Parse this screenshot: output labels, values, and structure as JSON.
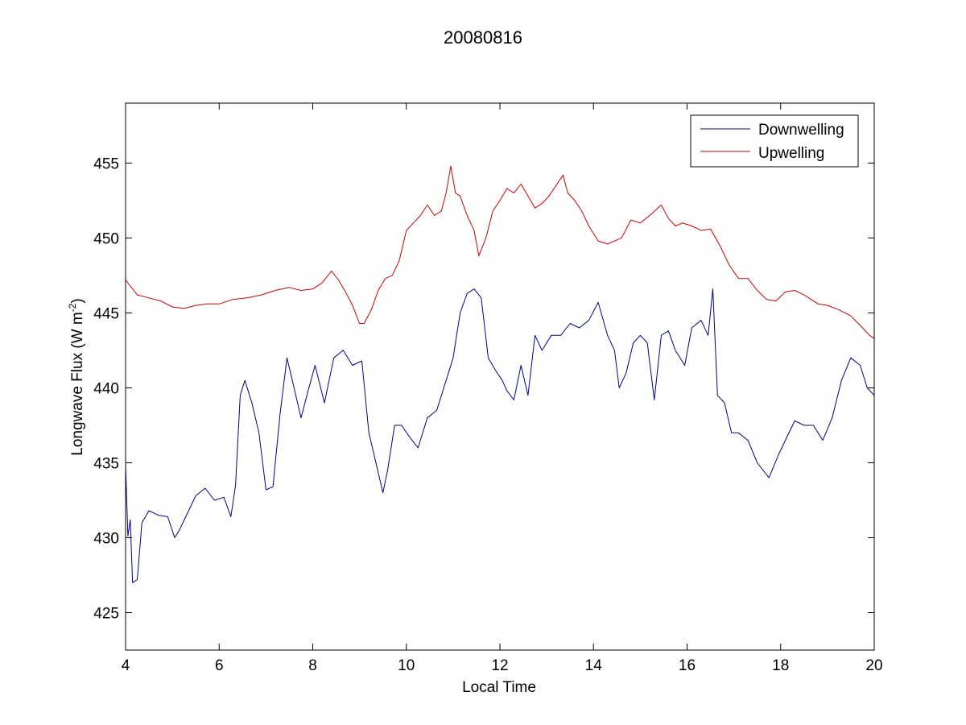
{
  "chart_data": {
    "type": "line",
    "title": "20080816",
    "xlabel": "Local Time",
    "ylabel_main": "Longwave Flux (W m",
    "ylabel_sup": "-2",
    "ylabel_close": ")",
    "xlim": [
      4,
      20
    ],
    "ylim": [
      422.5,
      459
    ],
    "xticks": [
      4,
      6,
      8,
      10,
      12,
      14,
      16,
      18,
      20
    ],
    "yticks": [
      425,
      430,
      435,
      440,
      445,
      450,
      455
    ],
    "grid": false,
    "legend_position": "top-right",
    "series": [
      {
        "name": "Downwelling",
        "color": "#00008b",
        "x": [
          4.0,
          4.05,
          4.1,
          4.15,
          4.25,
          4.35,
          4.5,
          4.7,
          4.9,
          5.05,
          5.15,
          5.3,
          5.5,
          5.7,
          5.9,
          6.1,
          6.25,
          6.35,
          6.45,
          6.55,
          6.7,
          6.85,
          7.0,
          7.15,
          7.3,
          7.45,
          7.6,
          7.75,
          7.9,
          8.05,
          8.25,
          8.45,
          8.65,
          8.85,
          9.05,
          9.2,
          9.35,
          9.5,
          9.6,
          9.75,
          9.9,
          10.05,
          10.25,
          10.45,
          10.65,
          10.85,
          11.0,
          11.15,
          11.3,
          11.45,
          11.6,
          11.75,
          11.9,
          12.05,
          12.15,
          12.3,
          12.45,
          12.6,
          12.75,
          12.9,
          13.1,
          13.3,
          13.5,
          13.7,
          13.9,
          14.1,
          14.3,
          14.45,
          14.55,
          14.7,
          14.85,
          15.0,
          15.15,
          15.3,
          15.45,
          15.6,
          15.75,
          15.95,
          16.1,
          16.3,
          16.45,
          16.55,
          16.65,
          16.8,
          16.95,
          17.1,
          17.3,
          17.5,
          17.75,
          17.95,
          18.1,
          18.3,
          18.5,
          18.7,
          18.9,
          19.1,
          19.3,
          19.5,
          19.7,
          19.85,
          20.0
        ],
        "values": [
          434.8,
          430.1,
          431.2,
          427.0,
          427.2,
          431.0,
          431.8,
          431.5,
          431.4,
          430.0,
          430.5,
          431.5,
          432.8,
          433.3,
          432.5,
          432.7,
          431.4,
          433.5,
          439.5,
          440.5,
          439.0,
          437.0,
          433.2,
          433.4,
          438.2,
          442.0,
          440.0,
          438.0,
          439.8,
          441.5,
          439.0,
          442.0,
          442.5,
          441.5,
          441.8,
          437.0,
          435.0,
          433.0,
          434.5,
          437.5,
          437.5,
          436.8,
          436.0,
          438.0,
          438.5,
          440.5,
          442.0,
          445.0,
          446.3,
          446.6,
          446.0,
          442.0,
          441.2,
          440.5,
          439.8,
          439.2,
          441.5,
          439.5,
          443.5,
          442.5,
          443.5,
          443.5,
          444.3,
          444.0,
          444.5,
          445.7,
          443.5,
          442.5,
          440.0,
          441.0,
          443.0,
          443.5,
          443.0,
          439.2,
          443.5,
          443.8,
          442.5,
          441.5,
          444.0,
          444.5,
          443.5,
          446.6,
          439.5,
          439.0,
          437.0,
          437.0,
          436.5,
          435.0,
          434.0,
          435.5,
          436.5,
          437.8,
          437.5,
          437.5,
          436.5,
          438.0,
          440.5,
          442.0,
          441.5,
          440.0,
          439.5
        ]
      },
      {
        "name": "Upwelling",
        "color": "#cc0000",
        "x": [
          4.0,
          4.1,
          4.25,
          4.5,
          4.75,
          5.0,
          5.25,
          5.5,
          5.75,
          6.0,
          6.3,
          6.6,
          6.9,
          7.2,
          7.5,
          7.75,
          8.0,
          8.2,
          8.4,
          8.55,
          8.7,
          8.85,
          9.0,
          9.1,
          9.25,
          9.4,
          9.55,
          9.7,
          9.85,
          10.0,
          10.15,
          10.3,
          10.45,
          10.6,
          10.75,
          10.85,
          10.95,
          11.05,
          11.15,
          11.3,
          11.45,
          11.55,
          11.7,
          11.85,
          12.0,
          12.15,
          12.3,
          12.45,
          12.6,
          12.75,
          12.9,
          13.05,
          13.2,
          13.35,
          13.45,
          13.6,
          13.75,
          13.9,
          14.1,
          14.3,
          14.45,
          14.6,
          14.8,
          15.0,
          15.2,
          15.45,
          15.6,
          15.75,
          15.9,
          16.1,
          16.3,
          16.5,
          16.7,
          16.9,
          17.1,
          17.3,
          17.5,
          17.7,
          17.9,
          18.1,
          18.3,
          18.5,
          18.8,
          19.0,
          19.25,
          19.5,
          19.75,
          19.9,
          20.0
        ],
        "values": [
          447.2,
          446.8,
          446.2,
          446.0,
          445.8,
          445.4,
          445.3,
          445.5,
          445.6,
          445.6,
          445.9,
          446.0,
          446.2,
          446.5,
          446.7,
          446.5,
          446.6,
          447.0,
          447.8,
          447.2,
          446.4,
          445.5,
          444.3,
          444.3,
          445.2,
          446.5,
          447.3,
          447.5,
          448.5,
          450.5,
          451.0,
          451.5,
          452.2,
          451.5,
          451.8,
          453.0,
          454.8,
          453.0,
          452.8,
          451.5,
          450.5,
          448.8,
          450.0,
          451.8,
          452.5,
          453.3,
          453.0,
          453.6,
          452.8,
          452.0,
          452.3,
          452.8,
          453.5,
          454.2,
          453.0,
          452.5,
          451.8,
          450.8,
          449.8,
          449.6,
          449.8,
          450.0,
          451.2,
          451.0,
          451.5,
          452.2,
          451.3,
          450.8,
          451.0,
          450.8,
          450.5,
          450.6,
          449.5,
          448.2,
          447.3,
          447.3,
          446.5,
          445.9,
          445.8,
          446.4,
          446.5,
          446.2,
          445.6,
          445.5,
          445.2,
          444.8,
          444.0,
          443.5,
          443.3
        ]
      }
    ]
  }
}
